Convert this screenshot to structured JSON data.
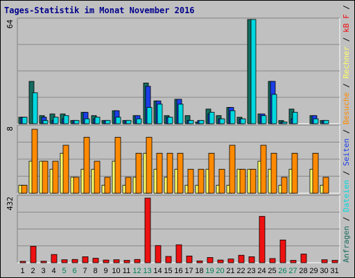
{
  "title": "Tages-Statistik im Monat November 2016",
  "colors": {
    "background": "#c0c0c0",
    "plot": "#c0c0c0",
    "grid": "#888888",
    "title": "#00008b",
    "anfragen": "#156b5f",
    "dateien": "#00d8e0",
    "seiten": "#1c3ee8",
    "rechner": "#ffff66",
    "besuche": "#ff8a00",
    "kbf": "#ee1111",
    "axis_weekday": "#000000",
    "axis_weekend": "#00805a"
  },
  "legend_right": [
    {
      "text": "Anfragen",
      "color": "#156b5f"
    },
    {
      "text": " / ",
      "color": "#000000"
    },
    {
      "text": "Dateien",
      "color": "#00d8e0"
    },
    {
      "text": " / ",
      "color": "#000000"
    },
    {
      "text": "Seiten",
      "color": "#1c3ee8"
    },
    {
      "text": " / ",
      "color": "#000000"
    },
    {
      "text": "Besuche",
      "color": "#ff8a00"
    },
    {
      "text": " / ",
      "color": "#000000"
    },
    {
      "text": "Rechner",
      "color": "#ffff66"
    },
    {
      "text": " / ",
      "color": "#000000"
    },
    {
      "text": "kB F",
      "color": "#ee1111"
    },
    {
      "text": " / ",
      "color": "#000000"
    },
    {
      "text": "kB In",
      "color": "#1c3ee8"
    },
    {
      "text": " / ",
      "color": "#000000"
    },
    {
      "text": "kB Out",
      "color": "#156b5f"
    }
  ],
  "chart_data": [
    {
      "type": "bar",
      "panel": "top",
      "ymax_label": "64",
      "ylim": [
        0,
        64
      ],
      "categories": [
        "1",
        "2",
        "3",
        "4",
        "5",
        "6",
        "7",
        "8",
        "9",
        "10",
        "11",
        "12",
        "13",
        "14",
        "15",
        "16",
        "17",
        "18",
        "19",
        "20",
        "21",
        "22",
        "23",
        "24",
        "25",
        "26",
        "27",
        "28",
        "29",
        "30",
        "31"
      ],
      "weekend_days": [
        "5",
        "6",
        "12",
        "13",
        "19",
        "20",
        "26",
        "27"
      ],
      "series": [
        {
          "name": "Anfragen",
          "values": [
            4,
            26,
            5,
            6,
            6,
            2,
            7,
            5,
            2,
            8,
            2,
            5,
            25,
            14,
            5,
            15,
            5,
            1,
            9,
            5,
            10,
            4,
            64,
            6,
            26,
            2,
            9,
            0,
            5,
            2,
            0
          ]
        },
        {
          "name": "Dateien",
          "values": [
            4,
            19,
            2,
            4,
            5,
            2,
            3,
            4,
            2,
            4,
            2,
            3,
            10,
            12,
            4,
            12,
            2,
            2,
            7,
            3,
            8,
            3,
            64,
            5,
            18,
            1,
            7,
            0,
            3,
            2,
            0
          ]
        },
        {
          "name": "Seiten",
          "values": [
            4,
            0,
            4,
            2,
            3,
            2,
            7,
            3,
            2,
            8,
            2,
            5,
            23,
            14,
            4,
            15,
            2,
            2,
            6,
            3,
            10,
            3,
            0,
            6,
            26,
            1,
            3,
            0,
            5,
            2,
            0
          ]
        }
      ]
    },
    {
      "type": "bar",
      "panel": "middle",
      "ymax_label": "8",
      "ylim": [
        0,
        8
      ],
      "categories": [
        "1",
        "2",
        "3",
        "4",
        "5",
        "6",
        "7",
        "8",
        "9",
        "10",
        "11",
        "12",
        "13",
        "14",
        "15",
        "16",
        "17",
        "18",
        "19",
        "20",
        "21",
        "22",
        "23",
        "24",
        "25",
        "26",
        "27",
        "28",
        "29",
        "30",
        "31"
      ],
      "series": [
        {
          "name": "Rechner",
          "values": [
            1,
            4,
            4,
            3,
            5,
            2,
            3,
            3,
            1,
            4,
            1,
            2,
            5,
            3,
            2,
            3,
            1,
            1,
            3,
            1,
            1,
            3,
            3,
            4,
            3,
            1,
            3,
            0,
            3,
            1,
            0
          ]
        },
        {
          "name": "Besuche",
          "values": [
            1,
            8,
            4,
            4,
            6,
            2,
            7,
            4,
            2,
            7,
            2,
            5,
            7,
            5,
            5,
            5,
            3,
            3,
            5,
            3,
            6,
            3,
            3,
            6,
            5,
            2,
            5,
            0,
            5,
            2,
            0
          ]
        }
      ]
    },
    {
      "type": "bar",
      "panel": "bottom",
      "ymax_label": "432",
      "ylim": [
        0,
        432
      ],
      "categories": [
        "1",
        "2",
        "3",
        "4",
        "5",
        "6",
        "7",
        "8",
        "9",
        "10",
        "11",
        "12",
        "13",
        "14",
        "15",
        "16",
        "17",
        "18",
        "19",
        "20",
        "21",
        "22",
        "23",
        "24",
        "25",
        "26",
        "27",
        "28",
        "29",
        "30",
        "31"
      ],
      "series": [
        {
          "name": "kB F",
          "values": [
            6,
            110,
            10,
            55,
            20,
            22,
            40,
            30,
            18,
            20,
            16,
            22,
            432,
            115,
            42,
            120,
            45,
            12,
            35,
            18,
            25,
            50,
            40,
            310,
            28,
            152,
            16,
            58,
            0,
            20,
            16
          ]
        }
      ]
    }
  ]
}
